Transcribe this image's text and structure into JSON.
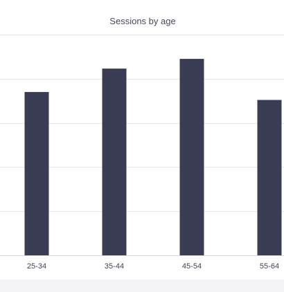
{
  "chart_data": {
    "type": "bar",
    "title": "Sessions by age",
    "categories": [
      "25-34",
      "35-44",
      "45-54",
      "55-64"
    ],
    "values": [
      37,
      42.3,
      44.5,
      35.2
    ],
    "ylim": [
      0,
      50
    ],
    "grid": true,
    "color": "#393c52"
  }
}
